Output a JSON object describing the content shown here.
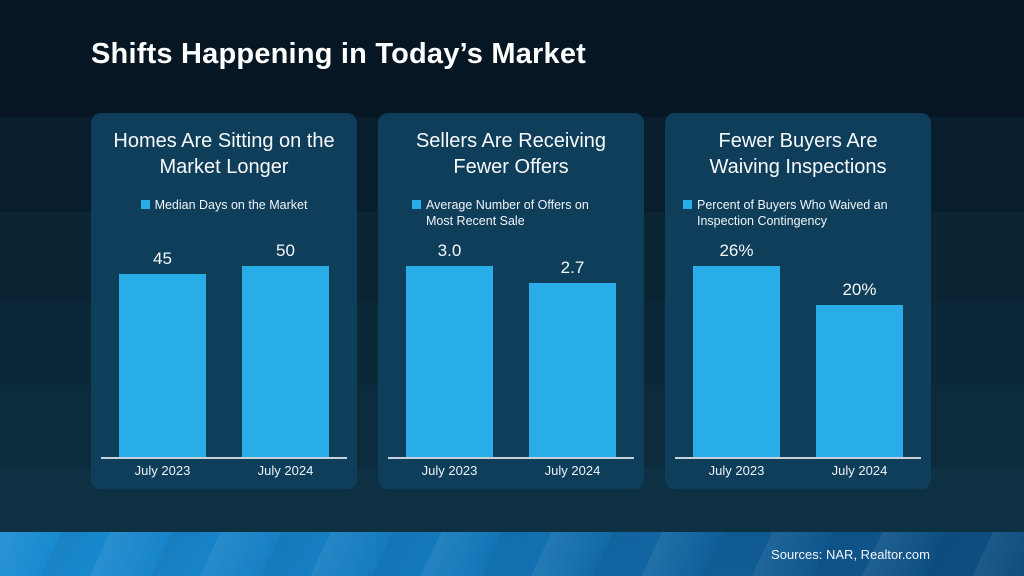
{
  "slide": {
    "title": "Shifts Happening in Today’s Market",
    "source_note": "Sources: NAR, Realtor.com"
  },
  "colors": {
    "bar": "#29ADE9",
    "panel_background": "#0F3E5B",
    "page_background_top": "#061723",
    "page_background_bottom": "#0D3043",
    "footer_left": "#1A8CD2",
    "footer_right": "#0D4B7C",
    "axis_line": "#C7D1D9",
    "text": "#FFFFFF"
  },
  "chart_data": [
    {
      "type": "bar",
      "title": "Homes Are Sitting on the Market Longer",
      "legend": "Median Days on the Market",
      "categories": [
        "July 2023",
        "July 2024"
      ],
      "values": [
        45,
        50
      ],
      "value_labels": [
        "45",
        "50"
      ],
      "ylim": [
        0,
        53
      ],
      "grid": false,
      "legend_position": "top"
    },
    {
      "type": "bar",
      "title": "Sellers Are Receiving Fewer Offers",
      "legend": "Average Number of Offers on Most Recent Sale",
      "categories": [
        "July 2023",
        "July 2024"
      ],
      "values": [
        3.0,
        2.7
      ],
      "value_labels": [
        "3.0",
        "2.7"
      ],
      "ylim": [
        0,
        3.35
      ],
      "grid": false,
      "legend_position": "top"
    },
    {
      "type": "bar",
      "title": "Fewer Buyers Are Waiving Inspections",
      "legend": "Percent of Buyers Who Waived an Inspection Contingency",
      "categories": [
        "July 2023",
        "July 2024"
      ],
      "values": [
        26,
        20
      ],
      "value_labels": [
        "26%",
        "20%"
      ],
      "ylim": [
        0,
        28.5
      ],
      "grid": false,
      "legend_position": "top"
    }
  ]
}
